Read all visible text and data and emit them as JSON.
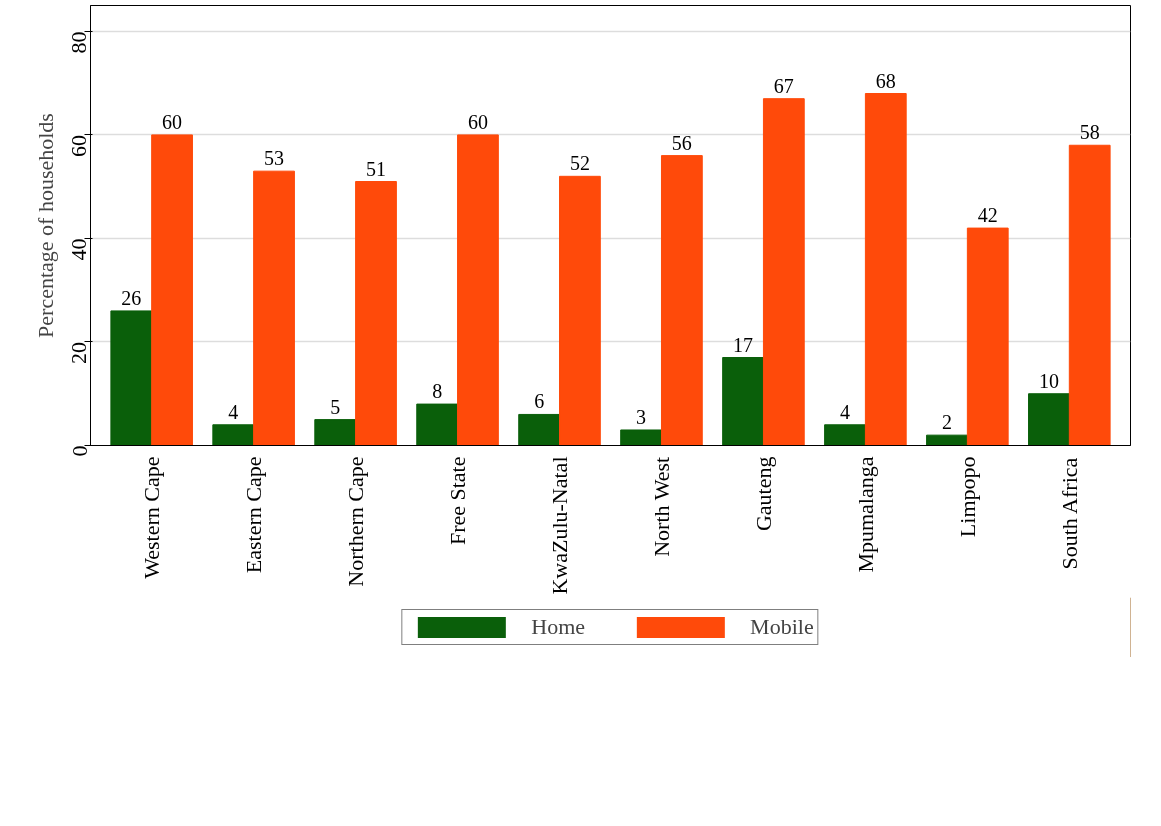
{
  "chart_data": {
    "type": "bar",
    "ylabel": "Percentage of households",
    "categories": [
      "Western Cape",
      "Eastern Cape",
      "Northern Cape",
      "Free State",
      "KwaZulu-Natal",
      "North West",
      "Gauteng",
      "Mpumalanga",
      "Limpopo",
      "South Africa"
    ],
    "series": [
      {
        "name": "Home",
        "color": "#0a5f0a",
        "values": [
          26,
          4,
          5,
          8,
          6,
          3,
          17,
          4,
          2,
          10
        ]
      },
      {
        "name": "Mobile",
        "color": "#ff4a0a",
        "values": [
          60,
          53,
          51,
          60,
          52,
          56,
          67,
          68,
          42,
          58
        ]
      }
    ],
    "ylim": [
      0,
      85
    ],
    "yticks": [
      0,
      20,
      40,
      60,
      80
    ],
    "grid": "y",
    "legend": "bottom",
    "data_labels": true
  }
}
